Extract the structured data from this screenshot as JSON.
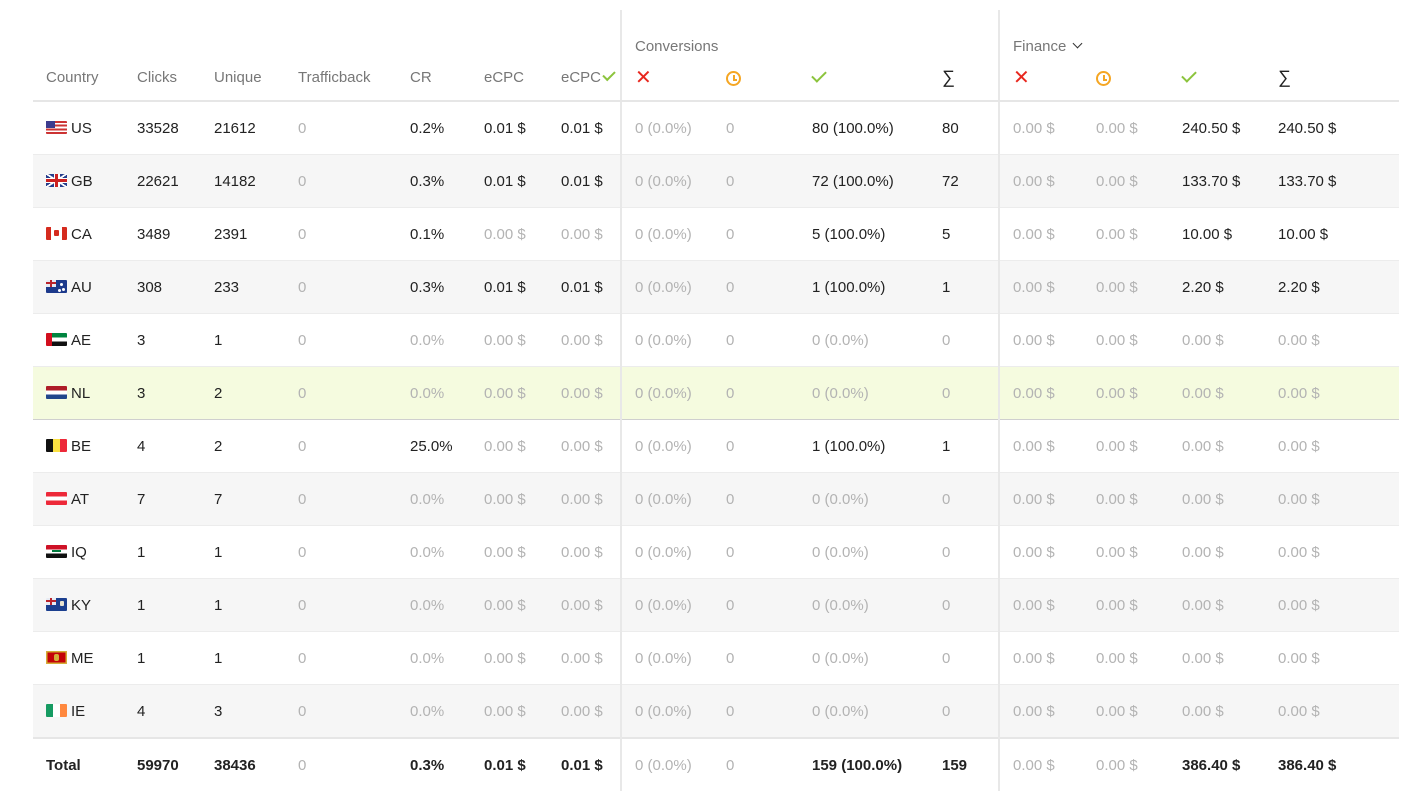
{
  "groups": {
    "conversions": "Conversions",
    "finance": "Finance"
  },
  "columns": {
    "country": "Country",
    "clicks": "Clicks",
    "unique": "Unique",
    "trafficback": "Trafficback",
    "cr": "CR",
    "ecpc": "eCPC",
    "ecpc_confirmed": "eCPC",
    "declined_icon": "x-icon",
    "pending_icon": "clock-icon",
    "approved_icon": "check-icon",
    "sum": "∑"
  },
  "rows": [
    {
      "country": "US",
      "clicks": "33528",
      "unique": "21612",
      "trafficback": "0",
      "cr": "0.2%",
      "ecpc": "0.01 $",
      "ecpc_c": "0.01 $",
      "conv_declined": "0 (0.0%)",
      "conv_pending": "0",
      "conv_approved": "80 (100.0%)",
      "conv_total": "80",
      "fin_declined": "0.00 $",
      "fin_pending": "0.00 $",
      "fin_approved": "240.50 $",
      "fin_total": "240.50 $"
    },
    {
      "country": "GB",
      "clicks": "22621",
      "unique": "14182",
      "trafficback": "0",
      "cr": "0.3%",
      "ecpc": "0.01 $",
      "ecpc_c": "0.01 $",
      "conv_declined": "0 (0.0%)",
      "conv_pending": "0",
      "conv_approved": "72 (100.0%)",
      "conv_total": "72",
      "fin_declined": "0.00 $",
      "fin_pending": "0.00 $",
      "fin_approved": "133.70 $",
      "fin_total": "133.70 $"
    },
    {
      "country": "CA",
      "clicks": "3489",
      "unique": "2391",
      "trafficback": "0",
      "cr": "0.1%",
      "ecpc": "0.00 $",
      "ecpc_c": "0.00 $",
      "conv_declined": "0 (0.0%)",
      "conv_pending": "0",
      "conv_approved": "5 (100.0%)",
      "conv_total": "5",
      "fin_declined": "0.00 $",
      "fin_pending": "0.00 $",
      "fin_approved": "10.00 $",
      "fin_total": "10.00 $"
    },
    {
      "country": "AU",
      "clicks": "308",
      "unique": "233",
      "trafficback": "0",
      "cr": "0.3%",
      "ecpc": "0.01 $",
      "ecpc_c": "0.01 $",
      "conv_declined": "0 (0.0%)",
      "conv_pending": "0",
      "conv_approved": "1 (100.0%)",
      "conv_total": "1",
      "fin_declined": "0.00 $",
      "fin_pending": "0.00 $",
      "fin_approved": "2.20 $",
      "fin_total": "2.20 $"
    },
    {
      "country": "AE",
      "clicks": "3",
      "unique": "1",
      "trafficback": "0",
      "cr": "0.0%",
      "ecpc": "0.00 $",
      "ecpc_c": "0.00 $",
      "conv_declined": "0 (0.0%)",
      "conv_pending": "0",
      "conv_approved": "0 (0.0%)",
      "conv_total": "0",
      "fin_declined": "0.00 $",
      "fin_pending": "0.00 $",
      "fin_approved": "0.00 $",
      "fin_total": "0.00 $"
    },
    {
      "country": "NL",
      "clicks": "3",
      "unique": "2",
      "trafficback": "0",
      "cr": "0.0%",
      "ecpc": "0.00 $",
      "ecpc_c": "0.00 $",
      "conv_declined": "0 (0.0%)",
      "conv_pending": "0",
      "conv_approved": "0 (0.0%)",
      "conv_total": "0",
      "fin_declined": "0.00 $",
      "fin_pending": "0.00 $",
      "fin_approved": "0.00 $",
      "fin_total": "0.00 $"
    },
    {
      "country": "BE",
      "clicks": "4",
      "unique": "2",
      "trafficback": "0",
      "cr": "25.0%",
      "ecpc": "0.00 $",
      "ecpc_c": "0.00 $",
      "conv_declined": "0 (0.0%)",
      "conv_pending": "0",
      "conv_approved": "1 (100.0%)",
      "conv_total": "1",
      "fin_declined": "0.00 $",
      "fin_pending": "0.00 $",
      "fin_approved": "0.00 $",
      "fin_total": "0.00 $"
    },
    {
      "country": "AT",
      "clicks": "7",
      "unique": "7",
      "trafficback": "0",
      "cr": "0.0%",
      "ecpc": "0.00 $",
      "ecpc_c": "0.00 $",
      "conv_declined": "0 (0.0%)",
      "conv_pending": "0",
      "conv_approved": "0 (0.0%)",
      "conv_total": "0",
      "fin_declined": "0.00 $",
      "fin_pending": "0.00 $",
      "fin_approved": "0.00 $",
      "fin_total": "0.00 $"
    },
    {
      "country": "IQ",
      "clicks": "1",
      "unique": "1",
      "trafficback": "0",
      "cr": "0.0%",
      "ecpc": "0.00 $",
      "ecpc_c": "0.00 $",
      "conv_declined": "0 (0.0%)",
      "conv_pending": "0",
      "conv_approved": "0 (0.0%)",
      "conv_total": "0",
      "fin_declined": "0.00 $",
      "fin_pending": "0.00 $",
      "fin_approved": "0.00 $",
      "fin_total": "0.00 $"
    },
    {
      "country": "KY",
      "clicks": "1",
      "unique": "1",
      "trafficback": "0",
      "cr": "0.0%",
      "ecpc": "0.00 $",
      "ecpc_c": "0.00 $",
      "conv_declined": "0 (0.0%)",
      "conv_pending": "0",
      "conv_approved": "0 (0.0%)",
      "conv_total": "0",
      "fin_declined": "0.00 $",
      "fin_pending": "0.00 $",
      "fin_approved": "0.00 $",
      "fin_total": "0.00 $"
    },
    {
      "country": "ME",
      "clicks": "1",
      "unique": "1",
      "trafficback": "0",
      "cr": "0.0%",
      "ecpc": "0.00 $",
      "ecpc_c": "0.00 $",
      "conv_declined": "0 (0.0%)",
      "conv_pending": "0",
      "conv_approved": "0 (0.0%)",
      "conv_total": "0",
      "fin_declined": "0.00 $",
      "fin_pending": "0.00 $",
      "fin_approved": "0.00 $",
      "fin_total": "0.00 $"
    },
    {
      "country": "IE",
      "clicks": "4",
      "unique": "3",
      "trafficback": "0",
      "cr": "0.0%",
      "ecpc": "0.00 $",
      "ecpc_c": "0.00 $",
      "conv_declined": "0 (0.0%)",
      "conv_pending": "0",
      "conv_approved": "0 (0.0%)",
      "conv_total": "0",
      "fin_declined": "0.00 $",
      "fin_pending": "0.00 $",
      "fin_approved": "0.00 $",
      "fin_total": "0.00 $"
    }
  ],
  "total": {
    "label": "Total",
    "clicks": "59970",
    "unique": "38436",
    "trafficback": "0",
    "cr": "0.3%",
    "ecpc": "0.01 $",
    "ecpc_c": "0.01 $",
    "conv_declined": "0 (0.0%)",
    "conv_pending": "0",
    "conv_approved": "159 (100.0%)",
    "conv_total": "159",
    "fin_declined": "0.00 $",
    "fin_pending": "0.00 $",
    "fin_approved": "386.40 $",
    "fin_total": "386.40 $"
  },
  "highlighted_row": "NL",
  "colors": {
    "declined": "#e8271e",
    "pending": "#f5a623",
    "approved": "#8cc43d",
    "highlight": "#f5fbdf"
  }
}
